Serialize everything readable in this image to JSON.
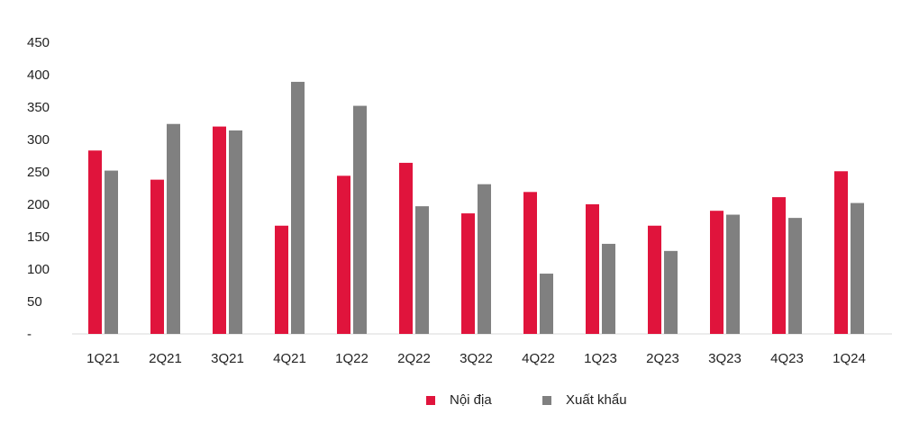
{
  "chart_data": {
    "type": "bar",
    "categories": [
      "1Q21",
      "2Q21",
      "3Q21",
      "4Q21",
      "1Q22",
      "2Q22",
      "3Q22",
      "4Q22",
      "1Q23",
      "2Q23",
      "3Q23",
      "4Q23",
      "1Q24"
    ],
    "series": [
      {
        "name": "Nội địa",
        "color": "#e0143c",
        "values": [
          283,
          238,
          320,
          167,
          244,
          264,
          186,
          219,
          200,
          167,
          190,
          211,
          251
        ]
      },
      {
        "name": "Xuất khẩu",
        "color": "#808080",
        "values": [
          252,
          324,
          314,
          389,
          352,
          197,
          231,
          93,
          139,
          128,
          184,
          179,
          202
        ]
      }
    ],
    "yticks": [
      "-",
      "50",
      "100",
      "150",
      "200",
      "250",
      "300",
      "350",
      "400",
      "450"
    ],
    "ylim": [
      0,
      450
    ],
    "grid": false,
    "legend_position": "bottom"
  }
}
